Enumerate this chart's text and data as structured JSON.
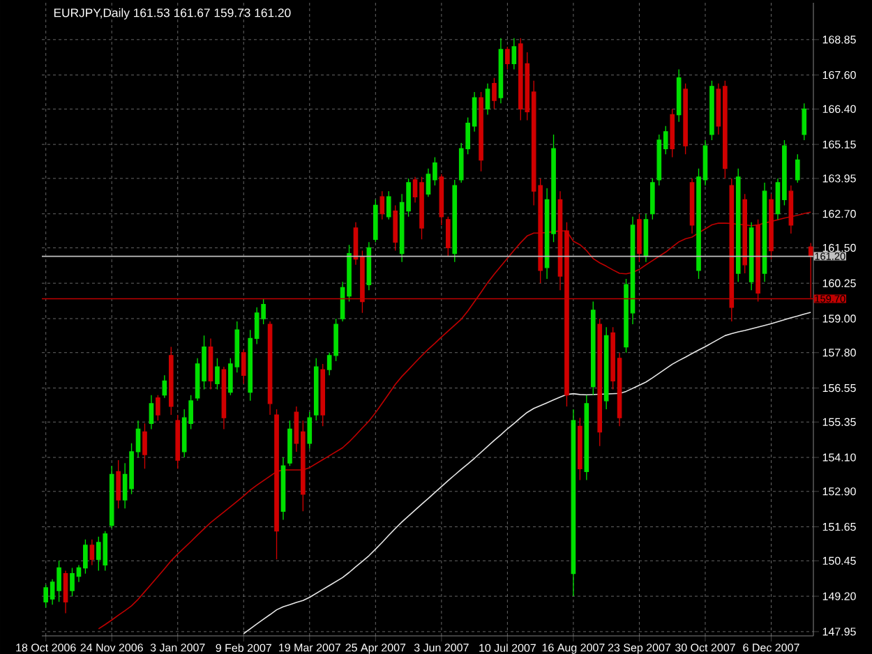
{
  "chart_data": {
    "type": "candlestick",
    "title": "EURJPY,Daily  161.53 161.67 159.73 161.20",
    "categories": [
      "18 Oct 2006",
      null,
      null,
      null,
      null,
      null,
      null,
      null,
      null,
      null,
      "24 Nov 2006",
      null,
      null,
      null,
      null,
      null,
      null,
      null,
      null,
      null,
      "3 Jan 2007",
      null,
      null,
      null,
      null,
      null,
      null,
      null,
      null,
      null,
      "9 Feb 2007",
      null,
      null,
      null,
      null,
      null,
      null,
      null,
      null,
      null,
      "19 Mar 2007",
      null,
      null,
      null,
      null,
      null,
      null,
      null,
      null,
      null,
      "25 Apr 2007",
      null,
      null,
      null,
      null,
      null,
      null,
      null,
      null,
      null,
      "3 Jun 2007",
      null,
      null,
      null,
      null,
      null,
      null,
      null,
      null,
      null,
      "10 Jul 2007",
      null,
      null,
      null,
      null,
      null,
      null,
      null,
      null,
      null,
      "16 Aug 2007",
      null,
      null,
      null,
      null,
      null,
      null,
      null,
      null,
      null,
      "23 Sep 2007",
      null,
      null,
      null,
      null,
      null,
      null,
      null,
      null,
      null,
      "30 Oct 2007",
      null,
      null,
      null,
      null,
      null,
      null,
      null,
      null,
      null,
      "6 Dec 2007",
      null,
      null,
      null,
      null,
      null,
      null
    ],
    "ohlc": [
      [
        149.0,
        149.6,
        148.8,
        149.5
      ],
      [
        149.1,
        149.8,
        148.9,
        149.7
      ],
      [
        149.4,
        150.45,
        149.0,
        150.2
      ],
      [
        150.0,
        150.1,
        148.6,
        149.0
      ],
      [
        149.4,
        150.2,
        149.2,
        150.0
      ],
      [
        149.9,
        150.3,
        149.7,
        150.2
      ],
      [
        150.2,
        151.2,
        150.0,
        151.0
      ],
      [
        151.0,
        151.2,
        150.3,
        150.5
      ],
      [
        150.5,
        151.3,
        150.1,
        151.1
      ],
      [
        150.3,
        151.5,
        150.1,
        151.4
      ],
      [
        151.7,
        153.8,
        151.6,
        153.5
      ],
      [
        153.6,
        154.0,
        152.3,
        152.6
      ],
      [
        152.6,
        153.9,
        152.3,
        153.5
      ],
      [
        153.0,
        154.6,
        152.8,
        154.3
      ],
      [
        154.3,
        155.4,
        154.1,
        155.1
      ],
      [
        155.0,
        155.3,
        153.7,
        154.2
      ],
      [
        155.3,
        156.3,
        155.1,
        156.0
      ],
      [
        156.2,
        156.3,
        155.4,
        155.6
      ],
      [
        156.3,
        157.0,
        156.2,
        156.8
      ],
      [
        157.7,
        158.0,
        155.6,
        155.9
      ],
      [
        155.4,
        155.6,
        153.7,
        154.0
      ],
      [
        154.3,
        155.8,
        154.1,
        155.5
      ],
      [
        155.3,
        156.3,
        155.1,
        156.1
      ],
      [
        156.2,
        157.6,
        156.1,
        157.4
      ],
      [
        156.8,
        158.4,
        156.5,
        158.0
      ],
      [
        158.0,
        158.3,
        156.5,
        156.8
      ],
      [
        156.7,
        157.6,
        156.5,
        157.3
      ],
      [
        157.2,
        157.3,
        155.1,
        155.5
      ],
      [
        156.4,
        157.6,
        156.3,
        157.4
      ],
      [
        157.3,
        158.9,
        157.1,
        158.6
      ],
      [
        157.8,
        157.9,
        156.7,
        157.0
      ],
      [
        156.4,
        158.6,
        156.1,
        158.3
      ],
      [
        158.3,
        159.4,
        158.1,
        159.2
      ],
      [
        159.0,
        159.7,
        158.8,
        159.5
      ],
      [
        158.8,
        158.9,
        155.6,
        156.0
      ],
      [
        155.6,
        155.8,
        150.5,
        151.5
      ],
      [
        152.2,
        154.1,
        151.9,
        153.8
      ],
      [
        153.9,
        155.4,
        153.8,
        155.1
      ],
      [
        155.7,
        155.9,
        154.3,
        154.6
      ],
      [
        155.0,
        155.4,
        152.2,
        152.8
      ],
      [
        154.6,
        155.7,
        154.4,
        155.5
      ],
      [
        155.6,
        157.6,
        155.4,
        157.3
      ],
      [
        157.2,
        157.4,
        155.2,
        155.6
      ],
      [
        157.2,
        157.8,
        157.0,
        157.7
      ],
      [
        157.7,
        159.0,
        157.5,
        158.8
      ],
      [
        159.0,
        160.3,
        158.9,
        160.1
      ],
      [
        159.8,
        161.6,
        159.6,
        161.3
      ],
      [
        162.2,
        162.4,
        160.9,
        161.1
      ],
      [
        161.2,
        161.4,
        159.2,
        159.6
      ],
      [
        160.2,
        161.7,
        160.0,
        161.5
      ],
      [
        161.8,
        163.2,
        161.7,
        163.0
      ],
      [
        163.3,
        163.5,
        162.5,
        162.7
      ],
      [
        162.6,
        163.5,
        162.5,
        163.3
      ],
      [
        162.8,
        163.0,
        161.4,
        161.7
      ],
      [
        161.3,
        163.4,
        161.0,
        163.1
      ],
      [
        162.8,
        163.95,
        162.6,
        163.8
      ],
      [
        163.9,
        164.0,
        163.1,
        163.3
      ],
      [
        163.8,
        164.0,
        161.8,
        162.2
      ],
      [
        163.4,
        164.3,
        163.3,
        164.1
      ],
      [
        163.9,
        164.7,
        163.7,
        164.5
      ],
      [
        164.0,
        164.1,
        162.3,
        162.6
      ],
      [
        162.5,
        162.6,
        161.2,
        161.5
      ],
      [
        161.3,
        163.9,
        161.0,
        163.7
      ],
      [
        163.9,
        165.2,
        163.8,
        165.0
      ],
      [
        165.0,
        166.1,
        164.8,
        165.9
      ],
      [
        165.8,
        167.0,
        165.6,
        166.8
      ],
      [
        166.8,
        167.0,
        164.2,
        164.6
      ],
      [
        166.4,
        167.3,
        166.2,
        167.1
      ],
      [
        167.3,
        167.5,
        166.4,
        166.7
      ],
      [
        166.8,
        168.9,
        166.6,
        168.5
      ],
      [
        168.5,
        168.6,
        167.8,
        168.0
      ],
      [
        168.0,
        168.9,
        167.8,
        168.6
      ],
      [
        168.7,
        168.9,
        166.0,
        166.4
      ],
      [
        168.0,
        168.4,
        166.0,
        166.3
      ],
      [
        167.0,
        167.4,
        163.0,
        163.5
      ],
      [
        163.7,
        163.95,
        160.25,
        160.7
      ],
      [
        160.8,
        163.6,
        160.4,
        163.2
      ],
      [
        162.0,
        165.5,
        161.7,
        165.0
      ],
      [
        163.2,
        163.5,
        160.0,
        160.5
      ],
      [
        162.1,
        162.4,
        155.9,
        156.3
      ],
      [
        150.0,
        155.8,
        149.2,
        155.4
      ],
      [
        155.2,
        155.5,
        153.3,
        153.7
      ],
      [
        153.6,
        156.3,
        153.3,
        156.0
      ],
      [
        156.6,
        159.6,
        156.3,
        159.3
      ],
      [
        158.8,
        159.0,
        154.5,
        155.0
      ],
      [
        156.1,
        158.7,
        155.8,
        158.4
      ],
      [
        158.5,
        158.7,
        156.5,
        156.8
      ],
      [
        157.6,
        157.8,
        155.2,
        155.5
      ],
      [
        158.0,
        160.4,
        157.8,
        160.2
      ],
      [
        159.2,
        162.6,
        158.8,
        162.3
      ],
      [
        162.5,
        162.7,
        161.0,
        161.3
      ],
      [
        161.2,
        162.7,
        161.0,
        162.5
      ],
      [
        162.7,
        163.95,
        162.5,
        163.8
      ],
      [
        163.9,
        165.5,
        163.7,
        165.3
      ],
      [
        165.0,
        165.8,
        164.8,
        165.6
      ],
      [
        166.2,
        166.4,
        164.7,
        165.0
      ],
      [
        166.2,
        167.8,
        165.95,
        167.5
      ],
      [
        167.1,
        167.3,
        164.8,
        165.1
      ],
      [
        163.8,
        163.95,
        162.0,
        162.3
      ],
      [
        160.7,
        164.3,
        160.4,
        164.0
      ],
      [
        163.9,
        165.3,
        163.7,
        165.1
      ],
      [
        165.5,
        167.4,
        165.3,
        167.2
      ],
      [
        167.1,
        167.3,
        165.5,
        165.8
      ],
      [
        167.2,
        167.4,
        163.95,
        164.3
      ],
      [
        163.7,
        163.95,
        158.9,
        159.4
      ],
      [
        160.6,
        164.3,
        160.3,
        164.0
      ],
      [
        163.2,
        163.4,
        160.6,
        160.9
      ],
      [
        160.3,
        162.4,
        160.0,
        162.2
      ],
      [
        162.3,
        162.5,
        159.6,
        159.9
      ],
      [
        160.6,
        163.8,
        160.3,
        163.5
      ],
      [
        163.2,
        163.4,
        161.1,
        161.4
      ],
      [
        162.7,
        163.95,
        162.5,
        163.8
      ],
      [
        163.2,
        165.3,
        163.0,
        165.1
      ],
      [
        163.5,
        163.7,
        162.0,
        162.3
      ],
      [
        163.9,
        164.8,
        163.8,
        164.6
      ],
      [
        165.5,
        166.6,
        165.3,
        166.4
      ],
      [
        161.53,
        161.67,
        159.73,
        161.2
      ]
    ],
    "colors": [
      "#00e000",
      "#00e000",
      "#00e000",
      "#d00000",
      "#00e000",
      "#00e000",
      "#00e000",
      "#d00000",
      "#00e000",
      "#00e000",
      "#00e000",
      "#d00000",
      "#00e000",
      "#00e000",
      "#00e000",
      "#d00000",
      "#00e000",
      "#d00000",
      "#00e000",
      "#d00000",
      "#d00000",
      "#00e000",
      "#00e000",
      "#00e000",
      "#00e000",
      "#d00000",
      "#00e000",
      "#d00000",
      "#00e000",
      "#00e000",
      "#d00000",
      "#00e000",
      "#00e000",
      "#00e000",
      "#d00000",
      "#d00000",
      "#00e000",
      "#00e000",
      "#d00000",
      "#d00000",
      "#00e000",
      "#00e000",
      "#d00000",
      "#00e000",
      "#00e000",
      "#00e000",
      "#00e000",
      "#d00000",
      "#d00000",
      "#00e000",
      "#00e000",
      "#d00000",
      "#00e000",
      "#d00000",
      "#00e000",
      "#00e000",
      "#d00000",
      "#d00000",
      "#00e000",
      "#00e000",
      "#d00000",
      "#d00000",
      "#00e000",
      "#00e000",
      "#00e000",
      "#00e000",
      "#d00000",
      "#00e000",
      "#d00000",
      "#00e000",
      "#d00000",
      "#00e000",
      "#d00000",
      "#d00000",
      "#d00000",
      "#d00000",
      "#00e000",
      "#00e000",
      "#d00000",
      "#d00000",
      "#00e000",
      "#d00000",
      "#00e000",
      "#00e000",
      "#d00000",
      "#00e000",
      "#d00000",
      "#d00000",
      "#00e000",
      "#00e000",
      "#d00000",
      "#00e000",
      "#00e000",
      "#00e000",
      "#00e000",
      "#d00000",
      "#00e000",
      "#d00000",
      "#d00000",
      "#00e000",
      "#00e000",
      "#00e000",
      "#d00000",
      "#d00000",
      "#d00000",
      "#00e000",
      "#d00000",
      "#00e000",
      "#d00000",
      "#00e000",
      "#d00000",
      "#00e000",
      "#00e000",
      "#d00000",
      "#00e000",
      "#00e000",
      "#d00000"
    ],
    "series": [
      {
        "type": "line",
        "color": "#c00000",
        "values": [
          null,
          null,
          null,
          null,
          null,
          null,
          null,
          null,
          148.05,
          148.2,
          148.36,
          148.53,
          148.69,
          148.86,
          149.09,
          149.36,
          149.63,
          149.9,
          150.17,
          150.45,
          150.69,
          150.91,
          151.13,
          151.36,
          151.58,
          151.8,
          151.99,
          152.17,
          152.36,
          152.55,
          152.74,
          152.95,
          153.12,
          153.28,
          153.44,
          153.6,
          153.66,
          153.66,
          153.66,
          153.66,
          153.74,
          153.88,
          154.02,
          154.16,
          154.3,
          154.44,
          154.65,
          154.89,
          155.14,
          155.38,
          155.68,
          156.01,
          156.34,
          156.68,
          156.96,
          157.2,
          157.45,
          157.69,
          157.92,
          158.13,
          158.35,
          158.56,
          158.77,
          158.98,
          159.27,
          159.6,
          159.93,
          160.27,
          160.57,
          160.85,
          161.13,
          161.41,
          161.68,
          161.92,
          162.02,
          162.02,
          162.04,
          162.07,
          162.1,
          162.09,
          161.73,
          161.61,
          161.4,
          161.12,
          160.97,
          160.85,
          160.72,
          160.6,
          160.58,
          160.63,
          160.74,
          160.9,
          161.05,
          161.2,
          161.35,
          161.53,
          161.71,
          161.82,
          161.88,
          162.03,
          162.17,
          162.31,
          162.37,
          162.37,
          162.36,
          162.33,
          162.31,
          162.28,
          162.31,
          162.37,
          162.43,
          162.49,
          162.55,
          162.6,
          162.65,
          162.71,
          162.76
        ]
      },
      {
        "type": "line",
        "color": "#e8e8e8",
        "values": [
          null,
          null,
          null,
          null,
          null,
          null,
          null,
          null,
          null,
          null,
          null,
          null,
          null,
          null,
          null,
          null,
          null,
          null,
          null,
          null,
          null,
          null,
          null,
          null,
          null,
          null,
          null,
          null,
          null,
          null,
          147.88,
          148.05,
          148.22,
          148.39,
          148.55,
          148.72,
          148.83,
          148.9,
          148.98,
          149.05,
          149.16,
          149.3,
          149.44,
          149.58,
          149.72,
          149.86,
          150.04,
          150.24,
          150.43,
          150.63,
          150.86,
          151.1,
          151.35,
          151.59,
          151.82,
          152.03,
          152.24,
          152.45,
          152.65,
          152.86,
          153.07,
          153.28,
          153.48,
          153.68,
          153.87,
          154.07,
          154.28,
          154.49,
          154.7,
          154.9,
          155.11,
          155.3,
          155.5,
          155.69,
          155.83,
          155.93,
          156.03,
          156.13,
          156.23,
          156.32,
          156.35,
          156.32,
          156.31,
          156.32,
          156.33,
          156.34,
          156.35,
          156.36,
          156.43,
          156.54,
          156.65,
          156.76,
          156.91,
          157.07,
          157.23,
          157.39,
          157.52,
          157.64,
          157.77,
          157.89,
          158.01,
          158.14,
          158.27,
          158.4,
          158.47,
          158.53,
          158.58,
          158.64,
          158.7,
          158.76,
          158.82,
          158.89,
          158.96,
          159.03,
          159.09,
          159.16,
          159.22
        ]
      }
    ],
    "ylim": [
      147.8,
      170.15
    ],
    "yticks": [
      168.85,
      {
        "value": 167.6,
        "label": "167.60"
      },
      {
        "value": 166.4,
        "label": "166.40"
      },
      165.15,
      163.95,
      {
        "value": 162.7,
        "label": "162.70"
      },
      {
        "value": 161.5,
        "label": "161.50"
      },
      160.25,
      {
        "value": 159,
        "label": "159.00"
      },
      {
        "value": 157.8,
        "label": "157.80"
      },
      156.55,
      155.35,
      {
        "value": 154.1,
        "label": "154.10"
      },
      {
        "value": 152.9,
        "label": "152.90"
      },
      151.65,
      150.45,
      {
        "value": 149.2,
        "label": "149.20"
      },
      147.95
    ],
    "ref_lines": [
      {
        "axis": "y",
        "value": 161.2,
        "label": "161.20",
        "color": "#c0c0c0"
      },
      {
        "axis": "y",
        "value": 159.7,
        "label": "159.70",
        "color": "#c00000"
      }
    ],
    "grid": true
  }
}
